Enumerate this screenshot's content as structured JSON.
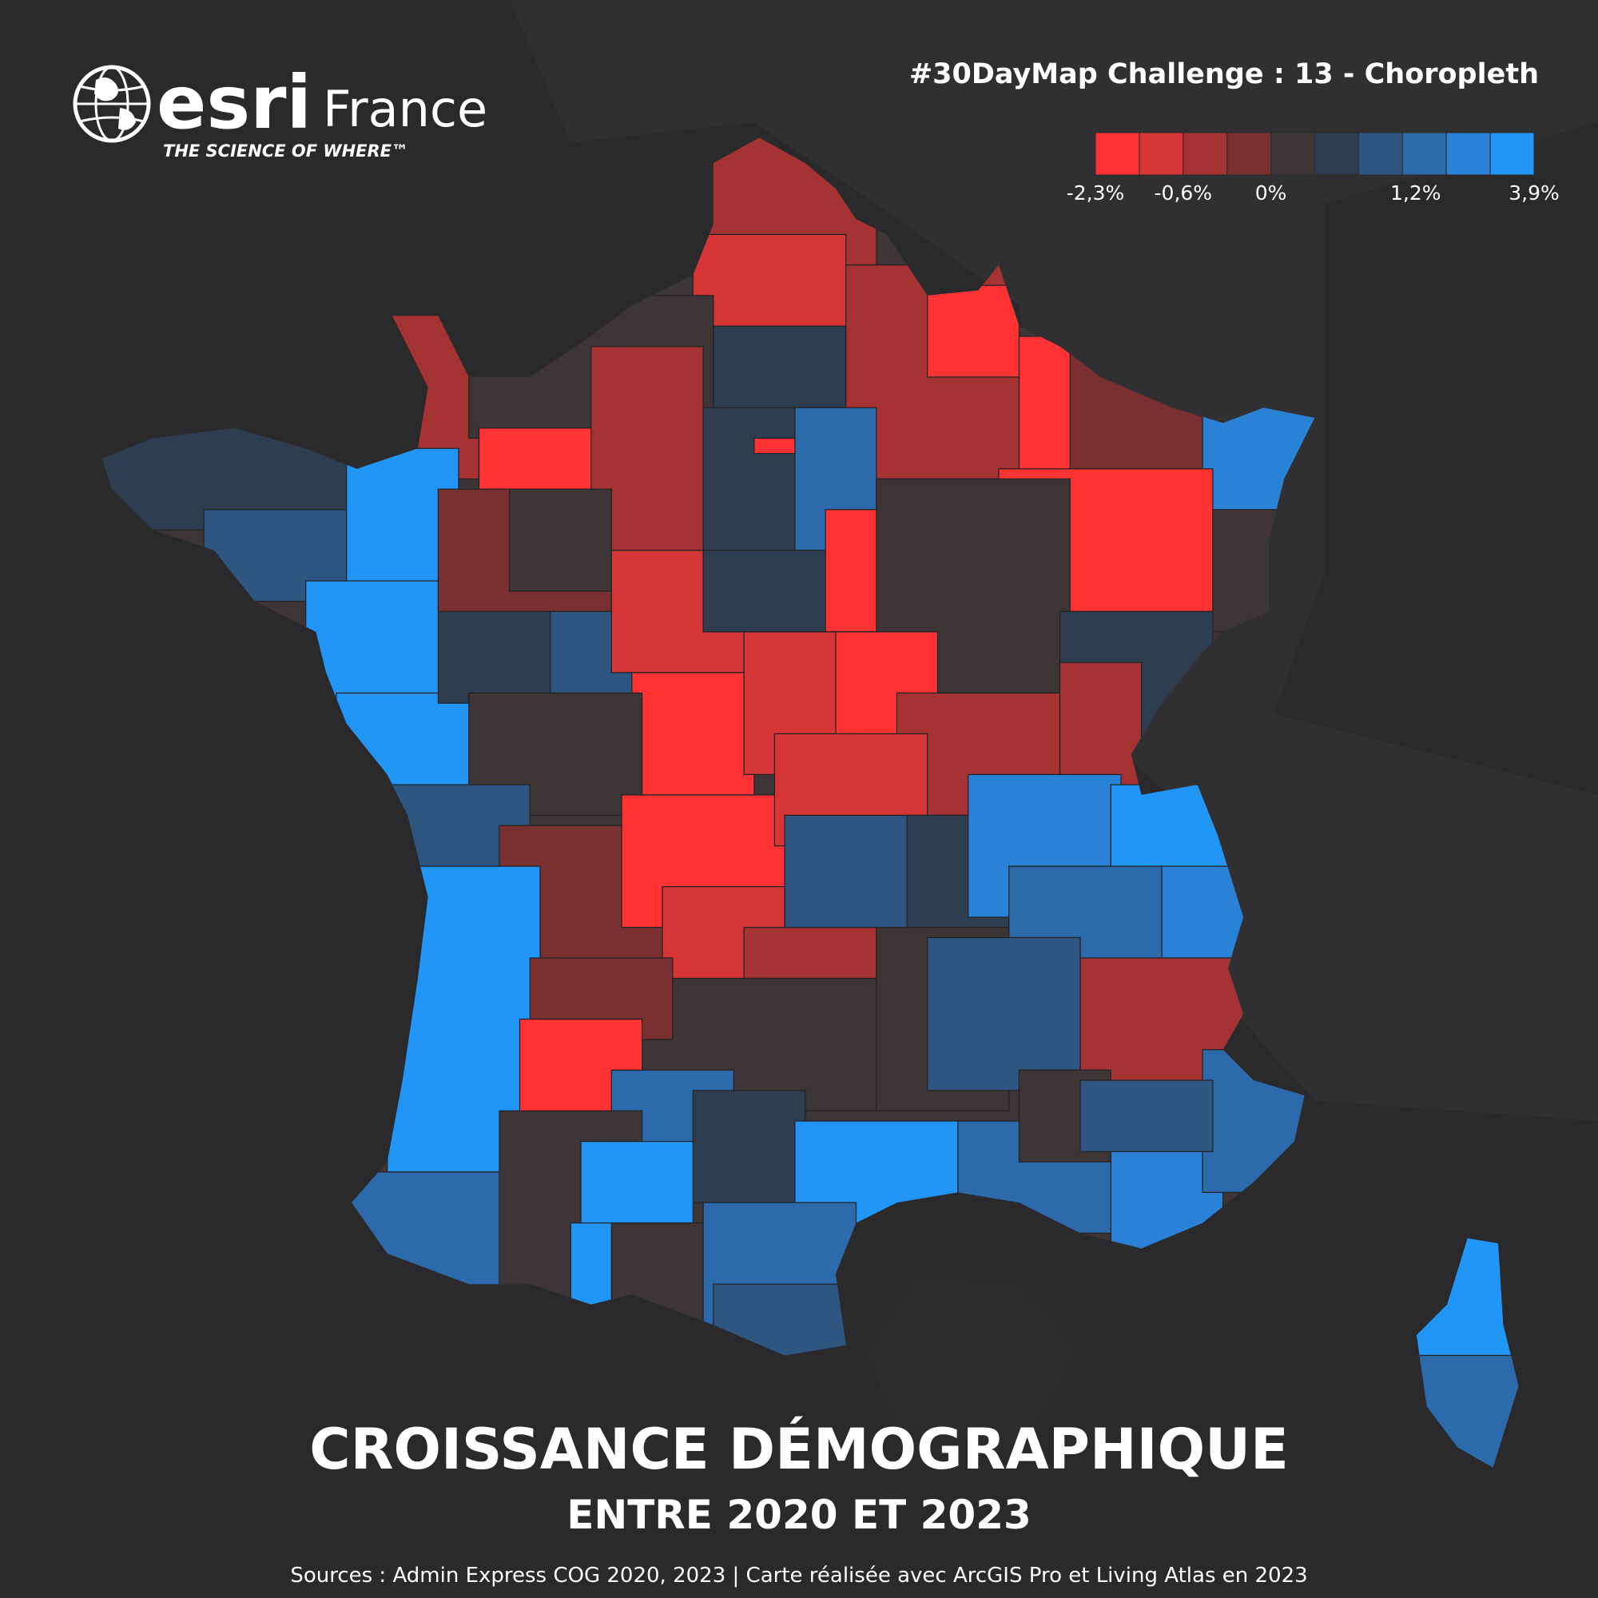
{
  "header": {
    "logo_word": "esri",
    "logo_region": "France",
    "tagline": "THE SCIENCE OF WHERE™",
    "challenge": "#30DayMap Challenge : 13 - Choropleth"
  },
  "legend": {
    "colors": [
      "#ff3333",
      "#d63535",
      "#a53334",
      "#7a2f30",
      "#3e3537",
      "#2e3d50",
      "#2f5680",
      "#2c6aab",
      "#2a82d6",
      "#2196f7"
    ],
    "labels": [
      "-2,3%",
      "-0,6%",
      "0%",
      "1,2%",
      "3,9%"
    ]
  },
  "title": "CROISSANCE DÉMOGRAPHIQUE",
  "subtitle": "ENTRE 2020 ET 2023",
  "source": "Sources : Admin Express COG 2020, 2023 | Carte réalisée avec ArcGIS Pro et Living Atlas en 2023"
}
